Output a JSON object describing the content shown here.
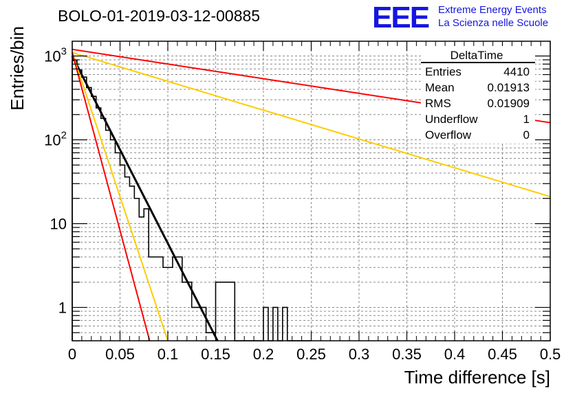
{
  "header": {
    "title": "BOLO-01-2019-03-12-00885",
    "logo_letters": "EEE",
    "logo_line1": "Extreme Energy Events",
    "logo_line2": "La Scienza nelle Scuole"
  },
  "stats_box": {
    "name": "DeltaTime",
    "rows": [
      {
        "label": "Entries",
        "value": "4410"
      },
      {
        "label": "Mean",
        "value": "0.01913"
      },
      {
        "label": "RMS",
        "value": "0.01909"
      },
      {
        "label": "Underflow",
        "value": "1"
      },
      {
        "label": "Overflow",
        "value": "0"
      }
    ]
  },
  "chart_data": {
    "type": "line",
    "xlabel": "Time difference [s]",
    "ylabel": "Entries/bin",
    "xlim": [
      0,
      0.5
    ],
    "ylim": [
      0.4,
      1500
    ],
    "yscale": "log",
    "grid": true,
    "x_ticks": [
      "0",
      "0.05",
      "0.1",
      "0.15",
      "0.2",
      "0.25",
      "0.3",
      "0.35",
      "0.4",
      "0.45",
      "0.5"
    ],
    "y_ticks": [
      {
        "base": "1",
        "exp": ""
      },
      {
        "base": "10",
        "exp": ""
      },
      {
        "base": "10",
        "exp": "2"
      },
      {
        "base": "10",
        "exp": "3"
      }
    ],
    "histogram": {
      "bin_width": 0.005,
      "counts": [
        880,
        680,
        560,
        420,
        330,
        240,
        180,
        130,
        100,
        70,
        50,
        36,
        28,
        20,
        12,
        15,
        4,
        4,
        4,
        3,
        3,
        4,
        4,
        2,
        2,
        1,
        1,
        1,
        0.5,
        0.5,
        2,
        2,
        2,
        2,
        0.3,
        0.3,
        0.3,
        0.3,
        0.3,
        0.3,
        1,
        0.3,
        1,
        0.3,
        1,
        0.3,
        0.3,
        0.3,
        0.3,
        0.3
      ]
    },
    "series": [
      {
        "color": "#000000",
        "x": [
          0,
          0.152
        ],
        "y": [
          1000,
          0.4
        ]
      },
      {
        "color": "#ff0000",
        "x": [
          0,
          0.5
        ],
        "y": [
          1200,
          160
        ]
      },
      {
        "color": "#ffcc00",
        "x": [
          0,
          0.5
        ],
        "y": [
          1100,
          21
        ]
      },
      {
        "color": "#ffcc00",
        "x": [
          0,
          0.1
        ],
        "y": [
          1100,
          0.4
        ]
      },
      {
        "color": "#ff0000",
        "x": [
          0,
          0.081
        ],
        "y": [
          1100,
          0.4
        ]
      }
    ],
    "colors": {
      "red": "#ff0000",
      "yellow": "#ffcc00",
      "black": "#000000",
      "logo": "#1515e0"
    }
  }
}
